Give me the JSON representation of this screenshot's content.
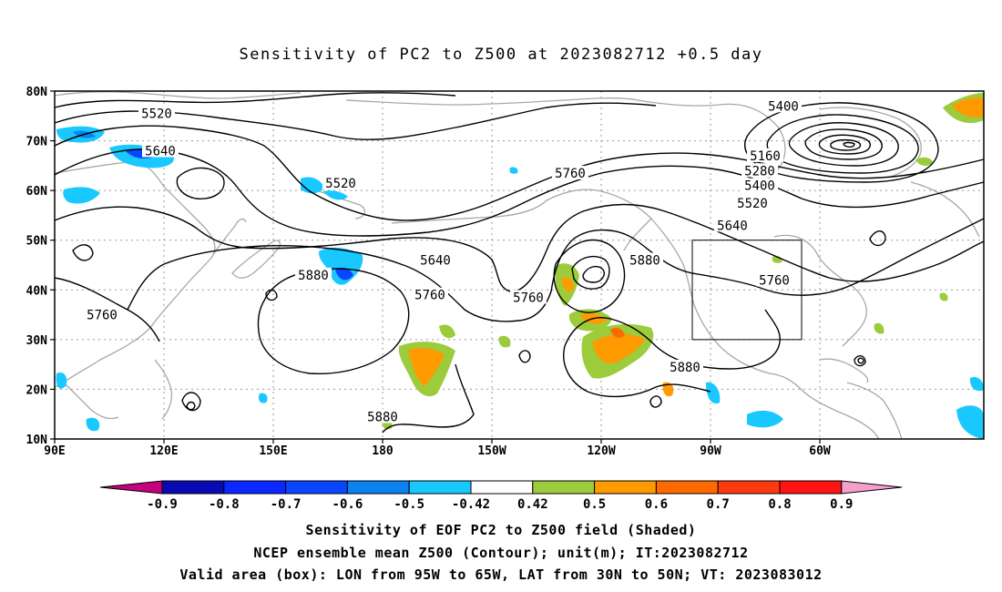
{
  "title": "Sensitivity of PC2 to Z500 at 2023082712 +0.5 day",
  "lat_labels": [
    "80N",
    "70N",
    "60N",
    "50N",
    "40N",
    "30N",
    "20N",
    "10N"
  ],
  "lon_labels": [
    "90E",
    "120E",
    "150E",
    "180",
    "150W",
    "120W",
    "90W",
    "60W"
  ],
  "contour_labels": [
    {
      "text": "5520",
      "lon": 118,
      "lat": 75.5
    },
    {
      "text": "5640",
      "lon": 119,
      "lat": 68
    },
    {
      "text": "5520",
      "lon": 168.5,
      "lat": 61.5
    },
    {
      "text": "5760",
      "lon": 231.5,
      "lat": 63.5
    },
    {
      "text": "5400",
      "lon": 290,
      "lat": 77
    },
    {
      "text": "5160",
      "lon": 285,
      "lat": 67
    },
    {
      "text": "5280",
      "lon": 283.5,
      "lat": 64
    },
    {
      "text": "5400",
      "lon": 283.5,
      "lat": 61
    },
    {
      "text": "5520",
      "lon": 281.5,
      "lat": 57.5
    },
    {
      "text": "5640",
      "lon": 276,
      "lat": 53
    },
    {
      "text": "5640",
      "lon": 194.5,
      "lat": 46
    },
    {
      "text": "5880",
      "lon": 161,
      "lat": 43
    },
    {
      "text": "5760",
      "lon": 193,
      "lat": 39
    },
    {
      "text": "5760",
      "lon": 103,
      "lat": 35
    },
    {
      "text": "5760",
      "lon": 220,
      "lat": 38.5
    },
    {
      "text": "5880",
      "lon": 252,
      "lat": 46
    },
    {
      "text": "5760",
      "lon": 287.5,
      "lat": 42
    },
    {
      "text": "5880",
      "lon": 263,
      "lat": 24.5
    },
    {
      "text": "5880",
      "lon": 180,
      "lat": 14.5
    }
  ],
  "valid_box": {
    "lon_min": 265,
    "lon_max": 295,
    "lat_min": 30,
    "lat_max": 50
  },
  "colorbar": {
    "labels": [
      "-0.9",
      "-0.8",
      "-0.7",
      "-0.6",
      "-0.5",
      "-0.42",
      "0.42",
      "0.5",
      "0.6",
      "0.7",
      "0.8",
      "0.9"
    ],
    "colors": [
      "#c4007e",
      "#0a0ab4",
      "#0a28ff",
      "#0a46ff",
      "#0a82f0",
      "#18c8ff",
      "#ffffff",
      "#9ccc3c",
      "#ff9a00",
      "#ff6a00",
      "#ff3a10",
      "#ff1414",
      "#f5a0cc"
    ]
  },
  "shading_colors": {
    "strong_neg": "#0a46ff",
    "neg": "#18c8ff",
    "pos_weak": "#9ccc3c",
    "pos": "#ff9a00"
  },
  "caption": [
    "Sensitivity of EOF PC2 to Z500 field (Shaded)",
    "NCEP ensemble mean Z500 (Contour); unit(m); IT:2023082712",
    "Valid area (box): LON from 95W to 65W, LAT from 30N to 50N; VT: 2023083012"
  ]
}
